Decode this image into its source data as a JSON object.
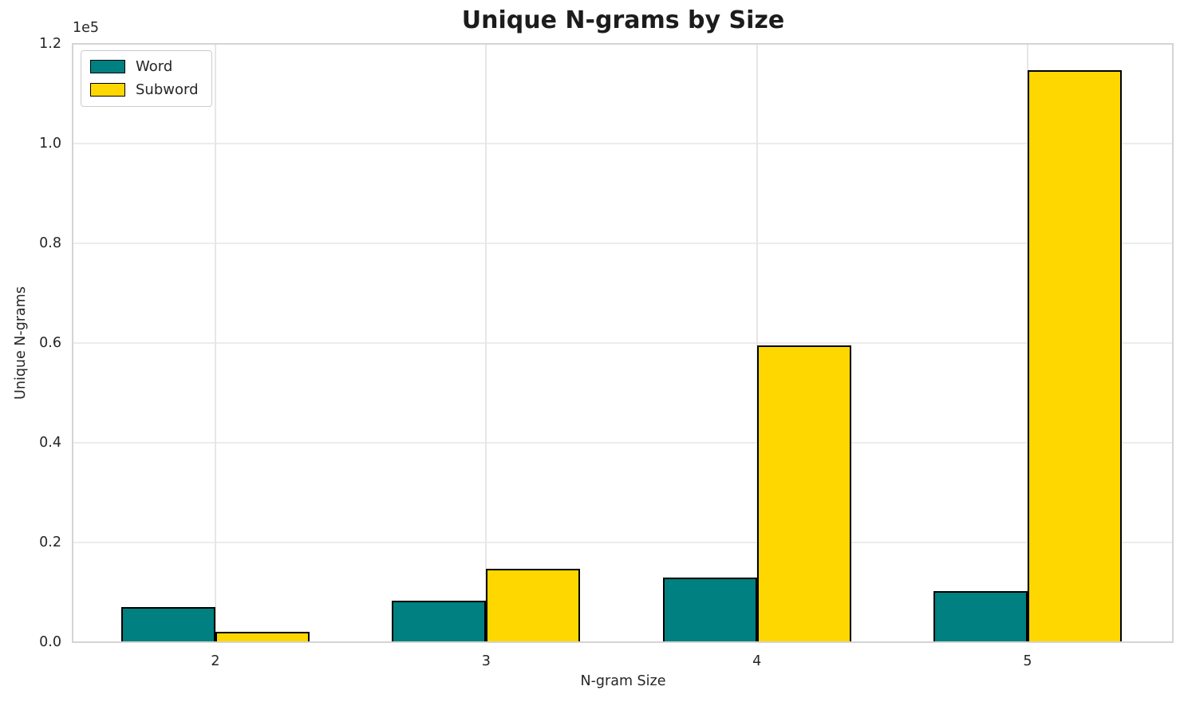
{
  "chart_data": {
    "type": "bar",
    "title": "Unique N-grams by Size",
    "xlabel": "N-gram Size",
    "ylabel": "Unique N-grams",
    "y_offset_text": "1e5",
    "categories": [
      "2",
      "3",
      "4",
      "5"
    ],
    "series": [
      {
        "name": "Word",
        "color": "#008080",
        "values": [
          7000,
          8300,
          13000,
          10200
        ]
      },
      {
        "name": "Subword",
        "color": "#FFD700",
        "values": [
          2100,
          14700,
          59500,
          114800
        ]
      }
    ],
    "ylim": [
      0,
      120000
    ],
    "yticks": [
      0,
      20000,
      40000,
      60000,
      80000,
      100000,
      120000
    ],
    "ytick_labels": [
      "0.0",
      "0.2",
      "0.4",
      "0.6",
      "0.8",
      "1.0",
      "1.2"
    ],
    "grid": true,
    "legend_position": "upper left",
    "bar_edgecolor": "#000000"
  }
}
